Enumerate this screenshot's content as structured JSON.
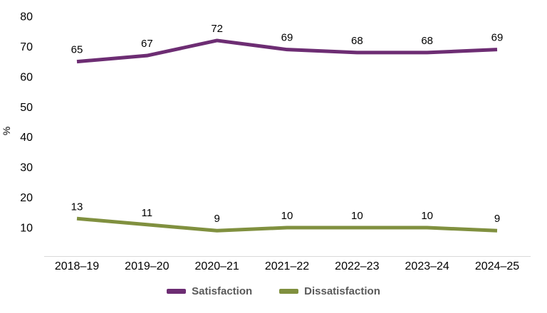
{
  "chart_data": {
    "type": "line",
    "title": "",
    "xlabel": "",
    "ylabel": "%",
    "categories": [
      "2018–19",
      "2019–20",
      "2020–21",
      "2021–22",
      "2022–23",
      "2023–24",
      "2024–25"
    ],
    "series": [
      {
        "name": "Satisfaction",
        "color": "#6D2D73",
        "values": [
          65,
          67,
          72,
          69,
          68,
          68,
          69
        ]
      },
      {
        "name": "Dissatisfaction",
        "color": "#80903F",
        "values": [
          13,
          11,
          9,
          10,
          10,
          10,
          9
        ]
      }
    ],
    "yticks": [
      10,
      20,
      30,
      40,
      50,
      60,
      70,
      80
    ],
    "ylim": [
      0,
      80
    ],
    "grid": false,
    "data_labels": true,
    "legend_position": "bottom"
  },
  "colors": {
    "axis_line": "#d9d9d9",
    "tick_text": "#000000",
    "data_label_text": "#000000",
    "legend_text": "#595959"
  }
}
